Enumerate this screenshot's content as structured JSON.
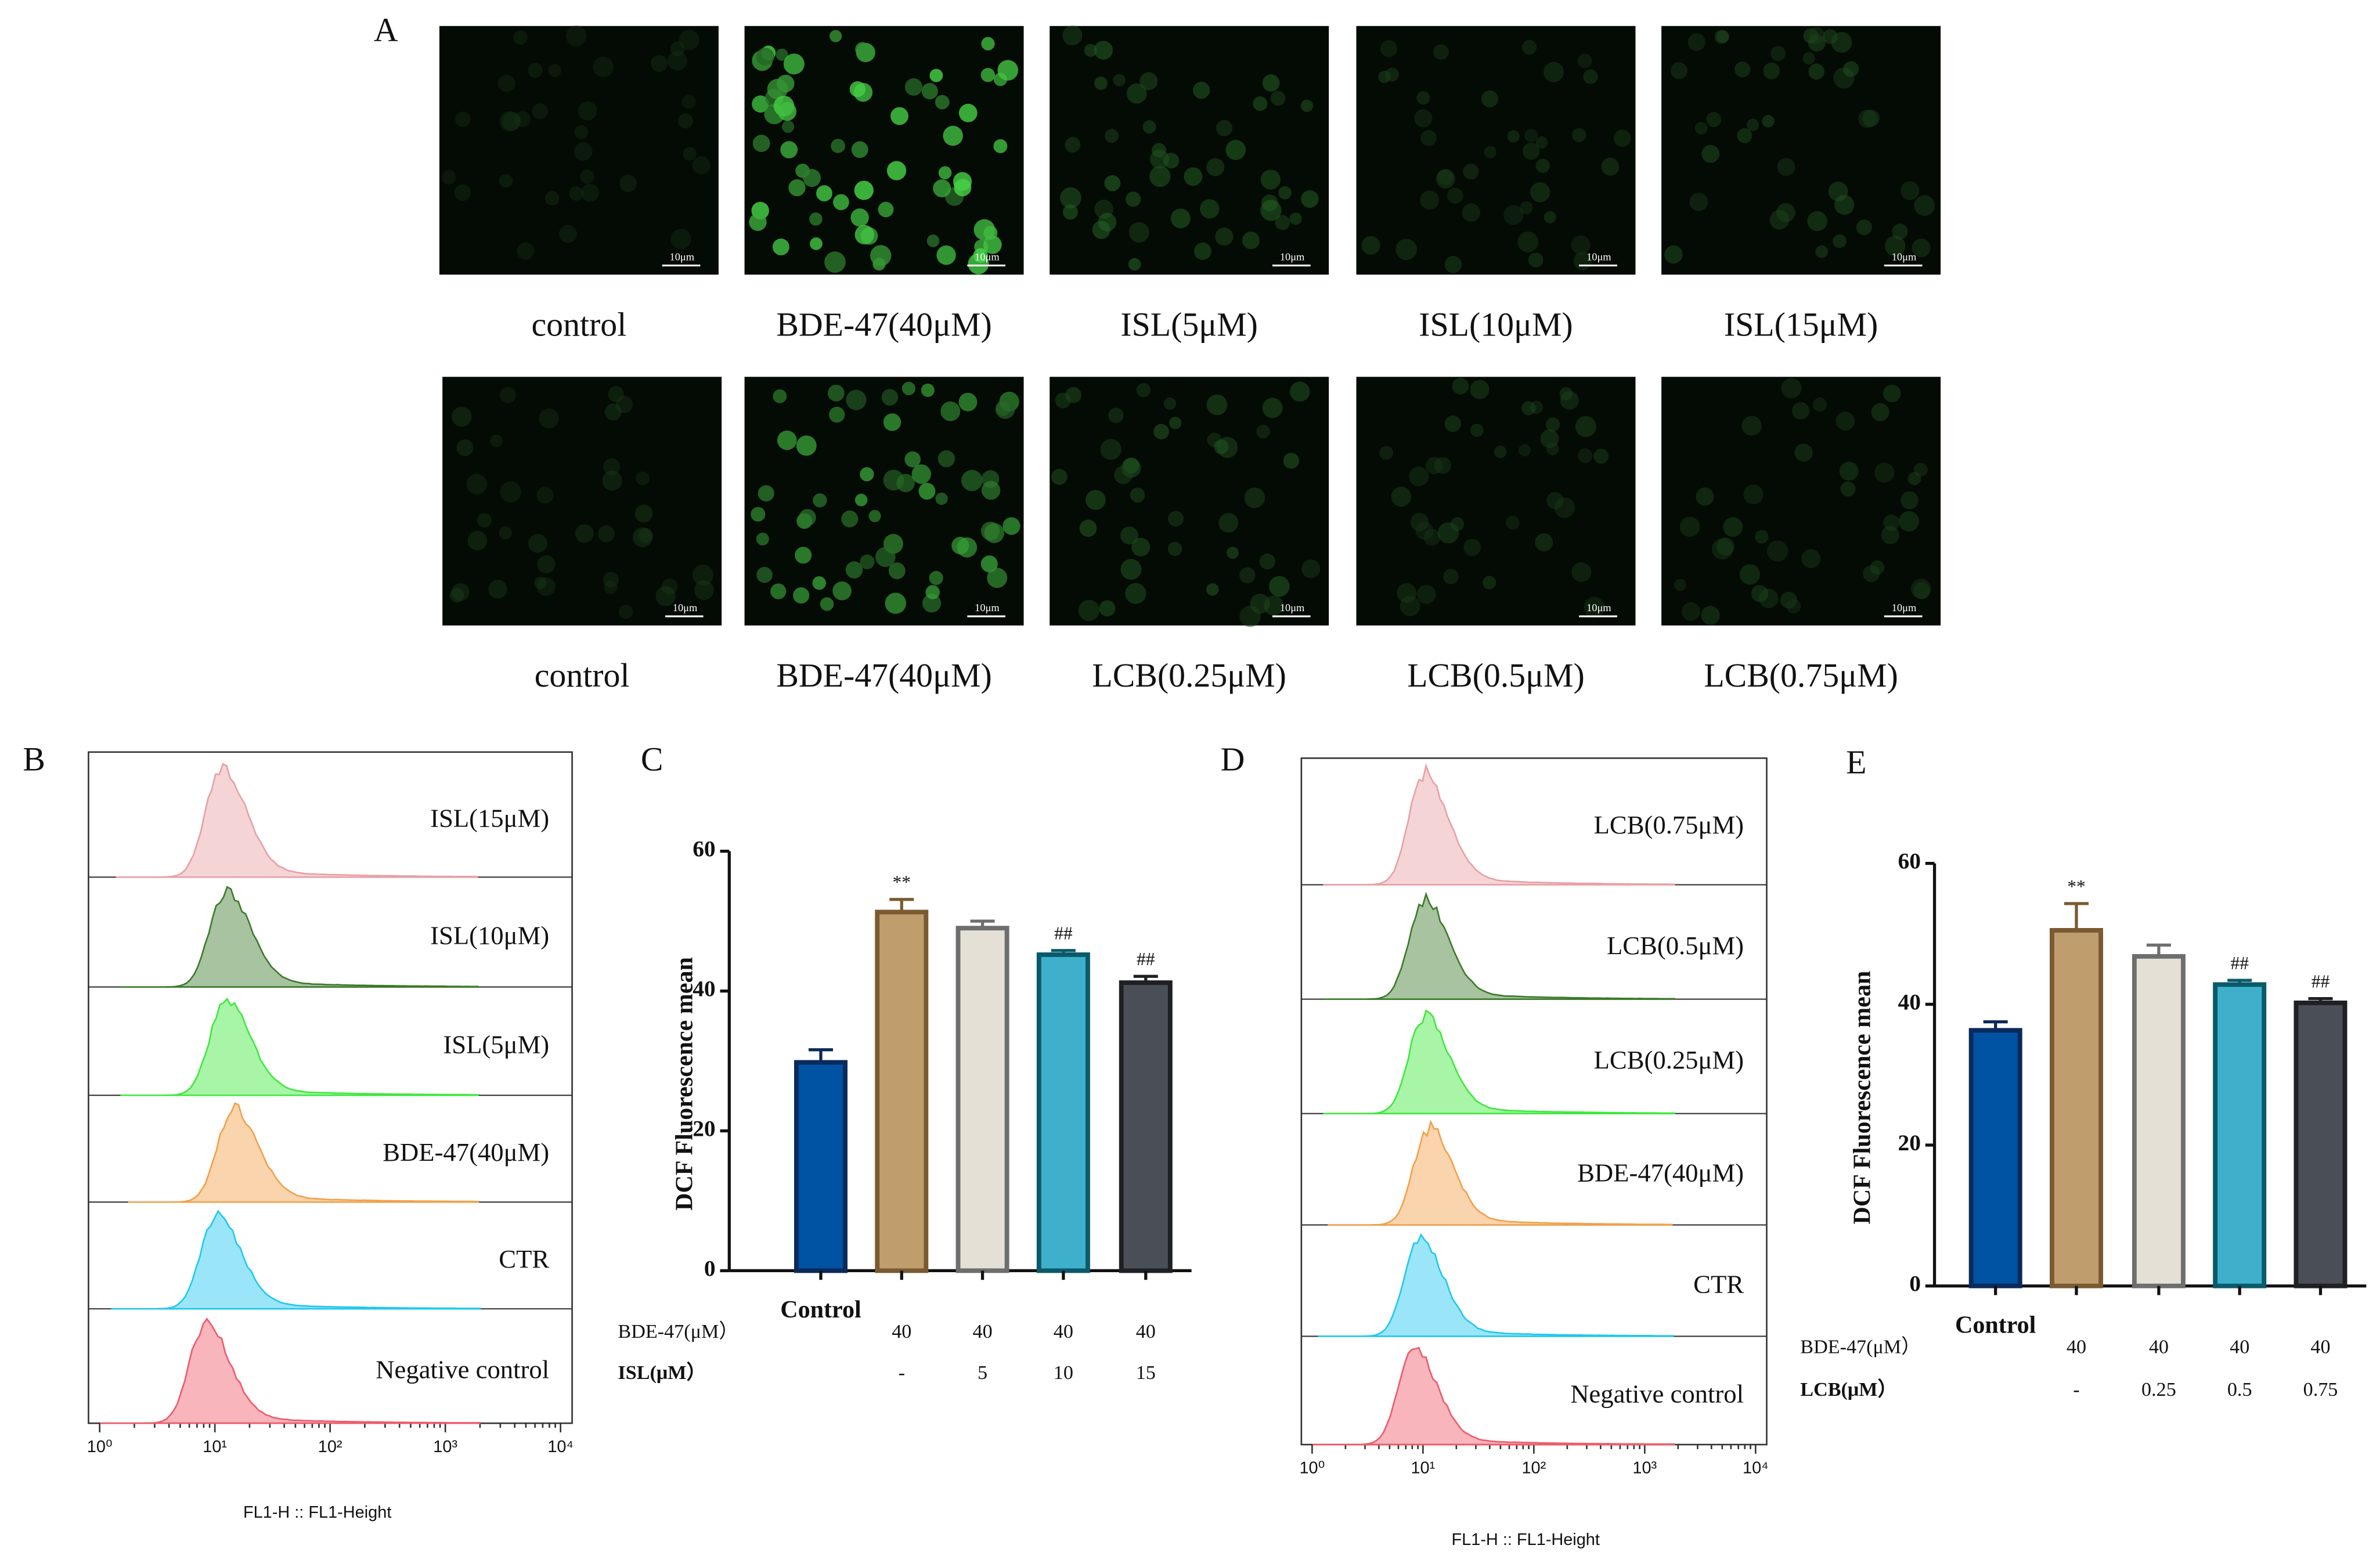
{
  "panel_a": {
    "label": "A",
    "scale_bar": "10μm",
    "rows": [
      [
        "control",
        "BDE-47(40μM)",
        "ISL(5μM)",
        "ISL(10μM)",
        "ISL(15μM)"
      ],
      [
        "control",
        "BDE-47(40μM)",
        "LCB(0.25μM)",
        "LCB(0.5μM)",
        "LCB(0.75μM)"
      ]
    ]
  },
  "chart_data": [
    {
      "type": "flow",
      "panel": "B",
      "xlabel": "FL1-H :: FL1-Height",
      "xscale": "log",
      "xlim": [
        0.8,
        12600
      ],
      "xticks": [
        {
          "value": 1,
          "label": "10⁰"
        },
        {
          "value": 10,
          "label": "10¹"
        },
        {
          "value": 100,
          "label": "10²"
        },
        {
          "value": 1000,
          "label": "10³"
        },
        {
          "value": 10000,
          "label": "10⁴"
        }
      ],
      "series": [
        {
          "name": "ISL(15μM)",
          "color": "#e8a0a4",
          "peak": 11
        },
        {
          "name": "ISL(10μM)",
          "color": "#3c7a2a",
          "peak": 12
        },
        {
          "name": "ISL(5μM)",
          "color": "#3ee83e",
          "peak": 12
        },
        {
          "name": "BDE-47(40μM)",
          "color": "#f2a04a",
          "peak": 14
        },
        {
          "name": "CTR",
          "color": "#1ec8f0",
          "peak": 10
        },
        {
          "name": "Negative control",
          "color": "#f05a6a",
          "peak": 8
        }
      ]
    },
    {
      "type": "bar",
      "panel": "C",
      "ylabel": "DCF Fluorescence mean",
      "ylim": [
        0,
        60
      ],
      "yticks": [
        0,
        20,
        40,
        60
      ],
      "categories": [
        "Control",
        null,
        null,
        null,
        null
      ],
      "values": [
        29.8,
        51.3,
        49.0,
        45.2,
        41.2
      ],
      "errors": [
        1.8,
        1.8,
        1.0,
        0.6,
        0.9
      ],
      "colors": [
        "#0052a2",
        "#bf9d6d",
        "#e4e0d6",
        "#3eb0cc",
        "#4a4e56"
      ],
      "edge_colors": [
        "#0a2a5a",
        "#7a5a30",
        "#6e6e6e",
        "#0a5a6a",
        "#1e2024"
      ],
      "annotations": [
        null,
        "**",
        null,
        "##",
        "##"
      ],
      "treatments": [
        {
          "label": "BDE-47(μM）",
          "values": [
            null,
            40,
            40,
            40,
            40
          ]
        },
        {
          "label": "ISL(μM）",
          "values": [
            null,
            "-",
            5,
            10,
            15
          ]
        }
      ]
    },
    {
      "type": "flow",
      "panel": "D",
      "xlabel": "FL1-H :: FL1-Height",
      "xscale": "log",
      "xlim": [
        0.8,
        12600
      ],
      "xticks": [
        {
          "value": 1,
          "label": "10⁰"
        },
        {
          "value": 10,
          "label": "10¹"
        },
        {
          "value": 100,
          "label": "10²"
        },
        {
          "value": 1000,
          "label": "10³"
        },
        {
          "value": 10000,
          "label": "10⁴"
        }
      ],
      "series": [
        {
          "name": "LCB(0.75μM)",
          "color": "#e8a0a4",
          "peak": 10
        },
        {
          "name": "LCB(0.5μM)",
          "color": "#3c7a2a",
          "peak": 10
        },
        {
          "name": "LCB(0.25μM)",
          "color": "#3ee83e",
          "peak": 10
        },
        {
          "name": "BDE-47(40μM)",
          "color": "#f2a04a",
          "peak": 11
        },
        {
          "name": "CTR",
          "color": "#1ec8f0",
          "peak": 9
        },
        {
          "name": "Negative control",
          "color": "#f05a6a",
          "peak": 8
        }
      ]
    },
    {
      "type": "bar",
      "panel": "E",
      "ylabel": "DCF Fluorescence mean",
      "ylim": [
        0,
        60
      ],
      "yticks": [
        0,
        20,
        40,
        60
      ],
      "categories": [
        "Control",
        null,
        null,
        null,
        null
      ],
      "values": [
        36.3,
        50.5,
        46.8,
        42.8,
        40.2
      ],
      "errors": [
        1.2,
        3.8,
        1.6,
        0.6,
        0.6
      ],
      "colors": [
        "#0052a2",
        "#bf9d6d",
        "#e4e0d6",
        "#3eb0cc",
        "#4a4e56"
      ],
      "edge_colors": [
        "#0a2a5a",
        "#7a5a30",
        "#6e6e6e",
        "#0a5a6a",
        "#1e2024"
      ],
      "annotations": [
        null,
        "**",
        null,
        "##",
        "##"
      ],
      "treatments": [
        {
          "label": "BDE-47(μM）",
          "values": [
            null,
            40,
            40,
            40,
            40
          ]
        },
        {
          "label": "LCB(μM）",
          "values": [
            null,
            "-",
            0.25,
            0.5,
            0.75
          ]
        }
      ]
    }
  ]
}
